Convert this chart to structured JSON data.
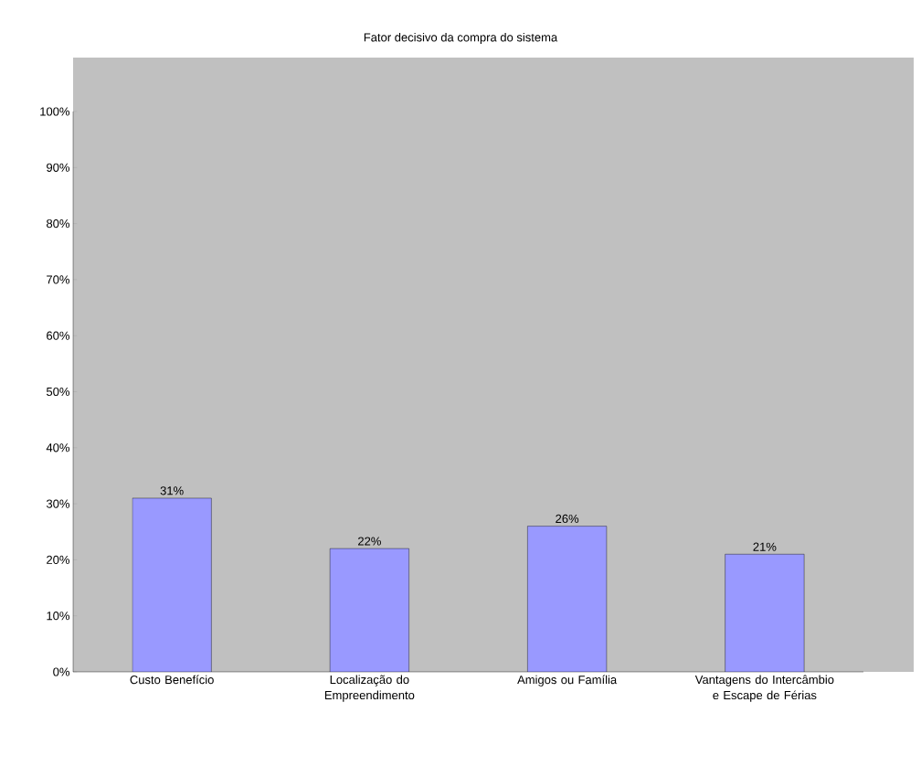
{
  "chart_data": {
    "type": "bar",
    "title": "Fator decisivo da compra do sistema",
    "categories": [
      "Custo Benefício",
      "Localização do Empreendimento",
      "Amigos ou Família",
      "Vantagens do Intercâmbio e Escape de Férias"
    ],
    "values": [
      31,
      22,
      26,
      21
    ],
    "value_labels": [
      "31%",
      "22%",
      "26%",
      "21%"
    ],
    "color": "#9999ff",
    "ylim": [
      0,
      100
    ],
    "yticks": [
      {
        "value": 0,
        "label": "0%"
      },
      {
        "value": 10,
        "label": "10%"
      },
      {
        "value": 20,
        "label": "20%"
      },
      {
        "value": 30,
        "label": "30%"
      },
      {
        "value": 40,
        "label": "40%"
      },
      {
        "value": 50,
        "label": "50%"
      },
      {
        "value": 60,
        "label": "60%"
      },
      {
        "value": 70,
        "label": "70%"
      },
      {
        "value": 80,
        "label": "80%"
      },
      {
        "value": 90,
        "label": "90%"
      },
      {
        "value": 100,
        "label": "100%"
      }
    ],
    "grid": false
  }
}
